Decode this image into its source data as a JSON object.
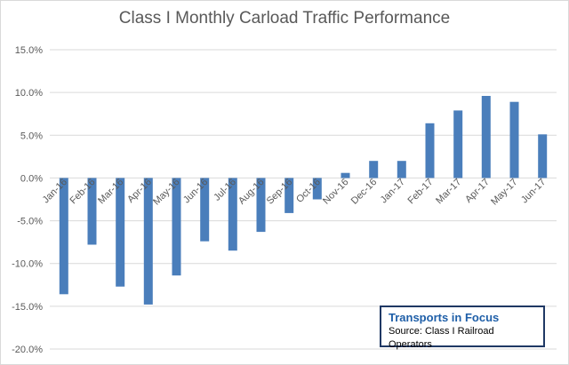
{
  "chart_data": {
    "type": "bar",
    "title": "Class I Monthly Carload Traffic Performance",
    "categories": [
      "Jan-16",
      "Feb-16",
      "Mar-16",
      "Apr-16",
      "May-16",
      "Jun-16",
      "Jul-16",
      "Aug-16",
      "Sep-16",
      "Oct-16",
      "Nov-16",
      "Dec-16",
      "Jan-17",
      "Feb-17",
      "Mar-17",
      "Apr-17",
      "May-17",
      "Jun-17"
    ],
    "values": [
      -13.6,
      -7.8,
      -12.7,
      -14.8,
      -11.4,
      -7.4,
      -8.5,
      -6.3,
      -4.1,
      -2.5,
      0.6,
      2.0,
      2.0,
      6.4,
      7.9,
      9.6,
      8.9,
      5.1
    ],
    "ylim": [
      -20,
      15
    ],
    "yticks": [
      15,
      10,
      5,
      0,
      -5,
      -10,
      -15,
      -20
    ],
    "ytick_labels": [
      "15.0%",
      "10.0%",
      "5.0%",
      "0.0%",
      "-5.0%",
      "-10.0%",
      "-15.0%",
      "-20.0%"
    ],
    "xlabel": "",
    "ylabel": "",
    "grid": true,
    "bar_color": "#4a7ebb",
    "grid_color": "#d9d9d9"
  },
  "source_box": {
    "title": "Transports  in Focus",
    "note": "Source: Class I Railroad Operators"
  }
}
